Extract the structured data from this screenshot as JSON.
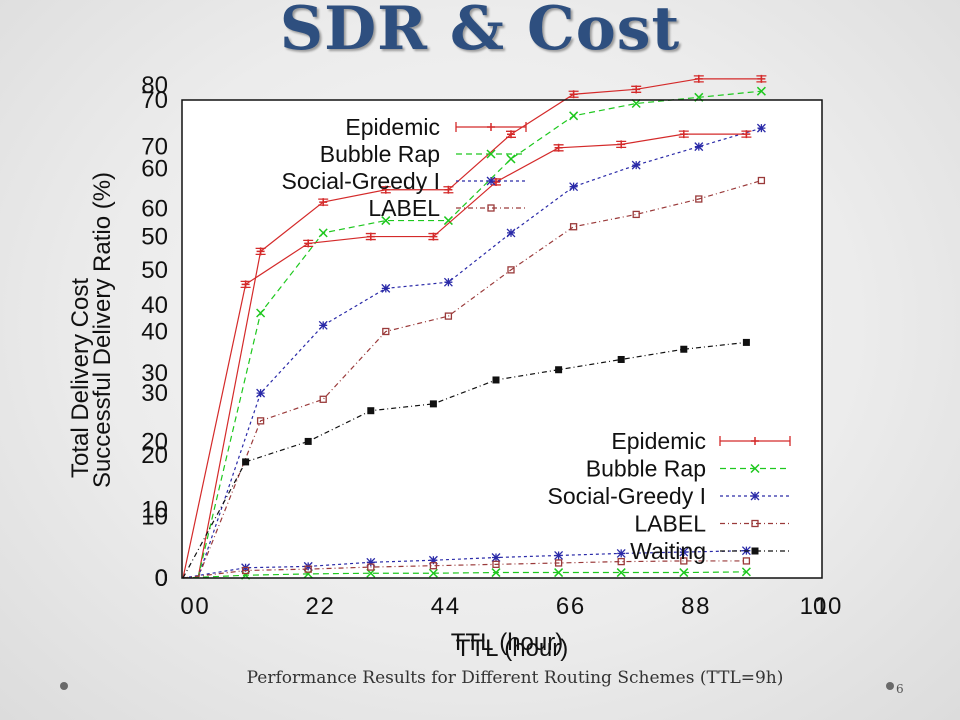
{
  "slide": {
    "title": "SDR & Cost",
    "caption": "Performance Results for Different Routing Schemes (TTL=9h)",
    "page_number": "6"
  },
  "chart_data": [
    {
      "type": "line",
      "ylabel": "Successful Delivery Ratio (%)",
      "xlabel": "TTL (hour)",
      "xlim": [
        0,
        10
      ],
      "ylim": [
        0,
        80
      ],
      "xticks": [
        "0",
        "2",
        "4",
        "6",
        "8",
        "10"
      ],
      "yticks": [
        "0",
        "10",
        "20",
        "30",
        "40",
        "50",
        "60",
        "70",
        "80"
      ],
      "legend_position": "top-center",
      "x": [
        0,
        1,
        2,
        3,
        4,
        5,
        6,
        7,
        8,
        9
      ],
      "series": [
        {
          "name": "Epidemic",
          "color": "#d42a2a",
          "dash": "",
          "marker": "plus",
          "values": [
            0,
            53,
            61,
            63,
            63,
            72,
            78.5,
            79.3,
            81,
            81
          ]
        },
        {
          "name": "Bubble Rap",
          "color": "#1ec81e",
          "dash": "6,4",
          "marker": "x",
          "values": [
            0,
            43,
            56,
            58,
            58,
            68,
            75,
            77,
            78,
            79
          ]
        },
        {
          "name": "Social-Greedy I",
          "color": "#2a2aa8",
          "dash": "3,3",
          "marker": "star",
          "values": [
            0,
            30,
            41,
            47,
            48,
            56,
            63.5,
            67,
            70,
            73
          ]
        },
        {
          "name": "LABEL",
          "color": "#9a3a3a",
          "dash": "5,3,1,3",
          "marker": "square",
          "values": [
            0,
            25.5,
            29,
            40,
            42.5,
            50,
            57,
            59,
            61.5,
            64.5
          ]
        }
      ]
    },
    {
      "type": "line",
      "ylabel": "Total Delivery Cost",
      "xlabel": "TTL (hour)",
      "xlim": [
        0,
        10
      ],
      "ylim": [
        0,
        70
      ],
      "xticks": [
        "0",
        "2",
        "4",
        "6",
        "8",
        "10"
      ],
      "yticks": [
        "0",
        "10",
        "20",
        "30",
        "40",
        "50",
        "60",
        "70"
      ],
      "legend_position": "bottom-right",
      "x": [
        0,
        1,
        2,
        3,
        4,
        5,
        6,
        7,
        8,
        9
      ],
      "series": [
        {
          "name": "Epidemic",
          "color": "#d42a2a",
          "dash": "",
          "marker": "plus",
          "values": [
            0,
            43,
            49,
            50,
            50,
            58,
            63,
            63.5,
            65,
            65
          ]
        },
        {
          "name": "Bubble Rap",
          "color": "#1ec81e",
          "dash": "6,4",
          "marker": "x",
          "values": [
            0,
            0.4,
            0.6,
            0.7,
            0.7,
            0.8,
            0.8,
            0.8,
            0.8,
            0.9
          ]
        },
        {
          "name": "Social-Greedy I",
          "color": "#2a2aa8",
          "dash": "3,3",
          "marker": "star",
          "values": [
            0,
            1.5,
            1.7,
            2.3,
            2.6,
            3.0,
            3.3,
            3.6,
            3.8,
            4.0
          ]
        },
        {
          "name": "LABEL",
          "color": "#9a3a3a",
          "dash": "5,3,1,3",
          "marker": "square",
          "values": [
            0,
            1.1,
            1.3,
            1.6,
            1.8,
            2.0,
            2.2,
            2.4,
            2.5,
            2.5
          ]
        },
        {
          "name": "Waiting",
          "color": "#111111",
          "dash": "5,3,1,3",
          "marker": "filled-square",
          "values": [
            0,
            17,
            20,
            24.5,
            25.5,
            29,
            30.5,
            32,
            33.5,
            34.5
          ]
        }
      ]
    }
  ]
}
